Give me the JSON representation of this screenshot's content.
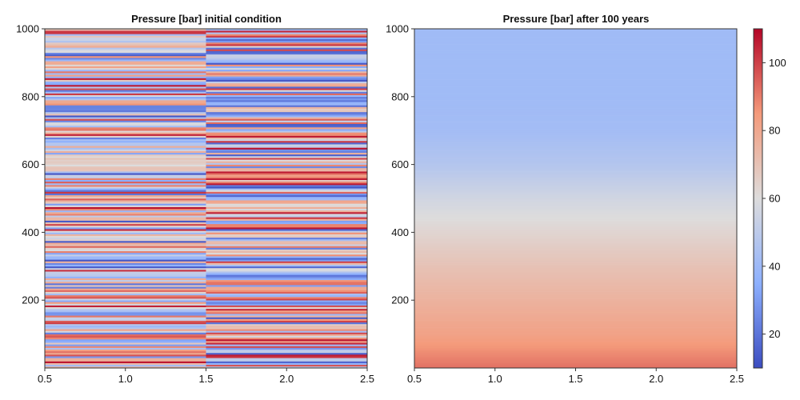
{
  "chart_data": [
    {
      "type": "heatmap",
      "title": "Pressure [bar] initial condition",
      "xlabel": "",
      "ylabel": "",
      "xlim": [
        0.5,
        2.5
      ],
      "ylim": [
        0,
        1000
      ],
      "xticks": [
        0.5,
        1.0,
        1.5,
        2.0,
        2.5
      ],
      "xtick_labels": [
        "0.5",
        "1.0",
        "1.5",
        "2.0",
        "2.5"
      ],
      "yticks": [
        200,
        400,
        600,
        800,
        1000
      ],
      "ytick_labels": [
        "200",
        "400",
        "600",
        "800",
        "1000"
      ],
      "columns": [
        1,
        2
      ],
      "rows": 200,
      "description_values": "Layered random pressures between ~12 and ~108 bar; column 1 (x 0.5-1.5) and column 2 (x 1.5-2.5) with independent random horizontal bands; a pale band near depth 600.",
      "value_range": [
        10,
        110
      ],
      "grid": false
    },
    {
      "type": "heatmap",
      "title": "Pressure [bar] after 100 years",
      "xlabel": "",
      "ylabel": "",
      "xlim": [
        0.5,
        2.5
      ],
      "ylim": [
        0,
        1000
      ],
      "xticks": [
        0.5,
        1.0,
        1.5,
        2.0,
        2.5
      ],
      "xtick_labels": [
        "0.5",
        "1.0",
        "1.5",
        "2.0",
        "2.5"
      ],
      "yticks": [
        200,
        400,
        600,
        800,
        1000
      ],
      "ytick_labels": [
        "200",
        "400",
        "600",
        "800",
        "1000"
      ],
      "depth_values": [
        0,
        100,
        200,
        300,
        400,
        500,
        600,
        700,
        800,
        900,
        1000
      ],
      "pressure_values": [
        92,
        82,
        76,
        70,
        63,
        56,
        47,
        42,
        41,
        41,
        41
      ],
      "grid": false
    }
  ],
  "colorbar": {
    "range": [
      10,
      110
    ],
    "ticks": [
      20,
      40,
      60,
      80,
      100
    ],
    "tick_labels": [
      "20",
      "40",
      "60",
      "80",
      "100"
    ],
    "colormap": "coolwarm"
  },
  "colors": {
    "cold": "#3b4cc0",
    "neutral": "#dddcdc",
    "warm": "#b40426",
    "frame": "#333333"
  }
}
